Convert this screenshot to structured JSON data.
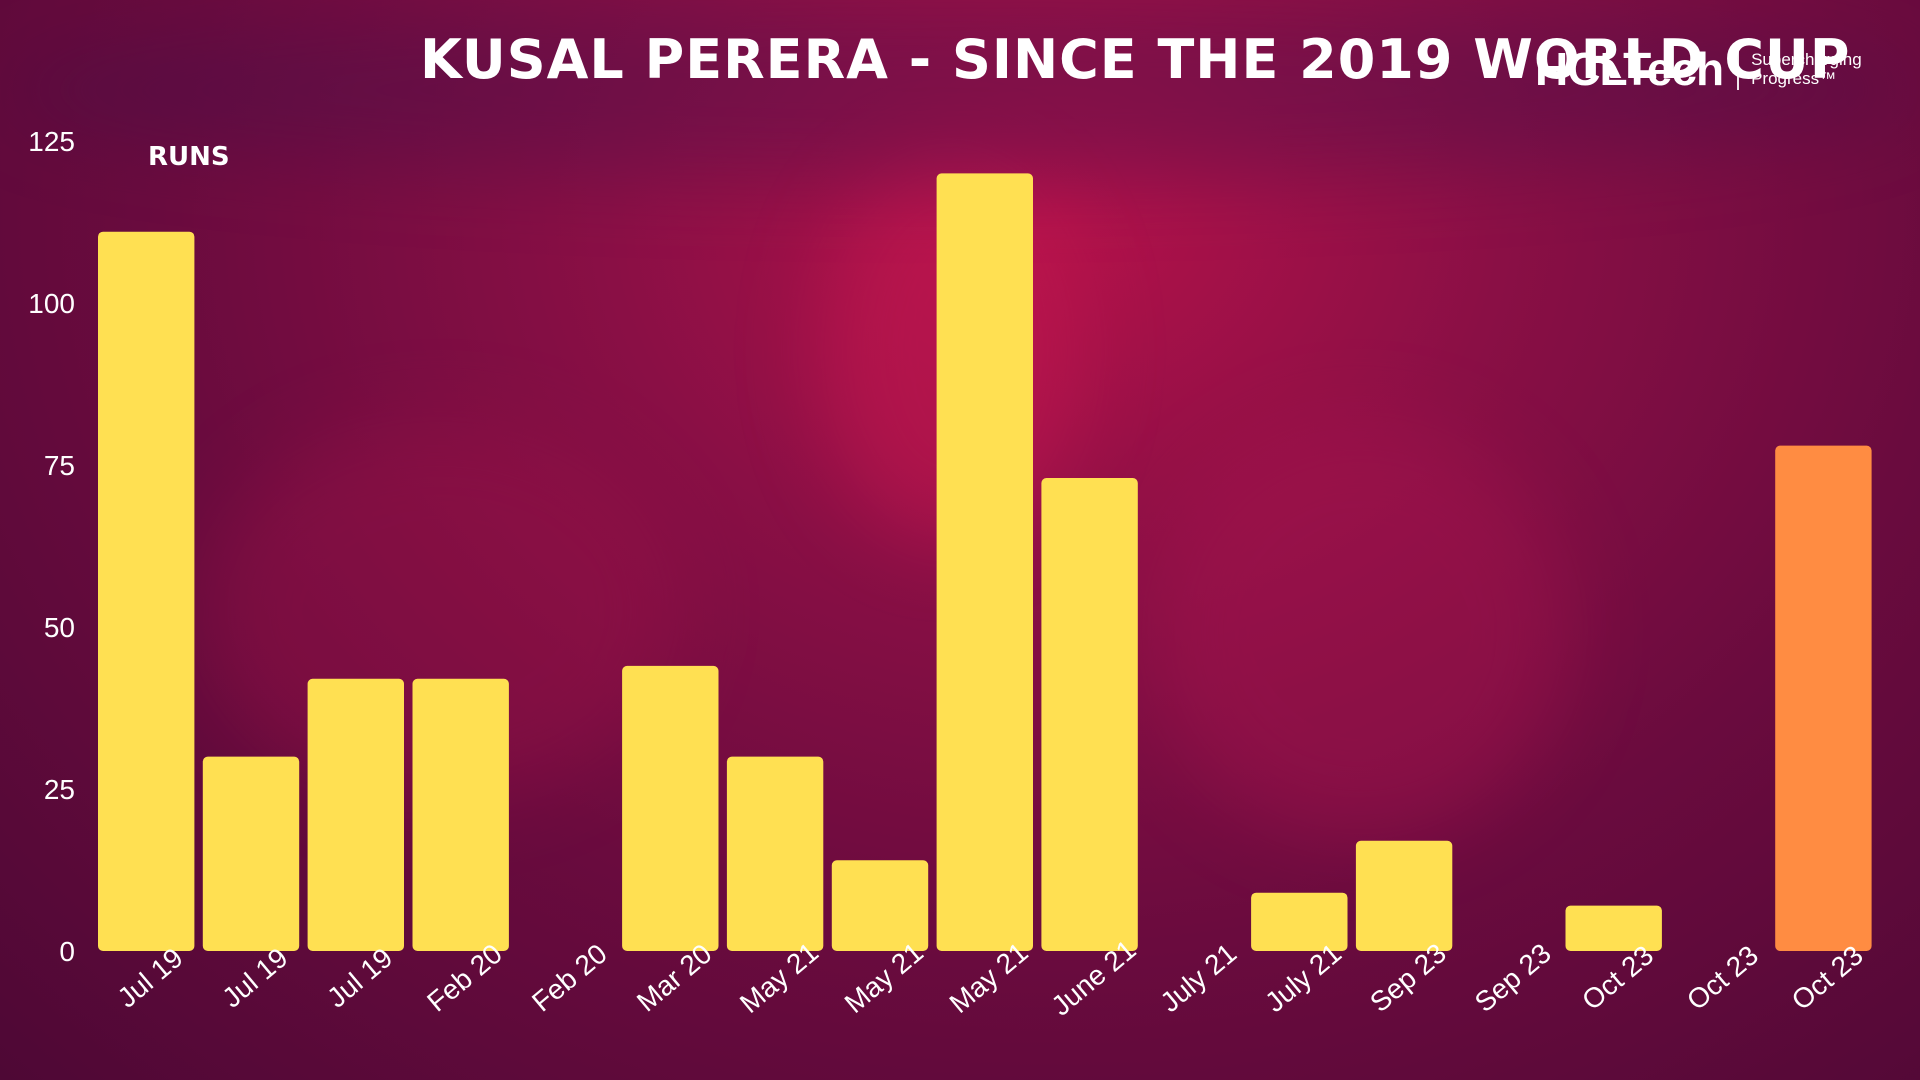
{
  "title": "KUSAL PERERA - SINCE THE 2019 WORLD CUP",
  "brand": {
    "name": "HCLTech",
    "tagline": "Supercharging Progress™"
  },
  "colors": {
    "bar": "#ffe052",
    "highlight": "#ff8c42",
    "text": "#ffffff"
  },
  "chart_data": {
    "type": "bar",
    "ylabel": "RUNS",
    "ylim": [
      0,
      125
    ],
    "yticks": [
      0,
      25,
      50,
      75,
      100,
      125
    ],
    "categories": [
      "Jul 19",
      "Jul 19",
      "Jul 19",
      "Feb 20",
      "Feb 20",
      "Mar 20",
      "May 21",
      "May 21",
      "May 21",
      "June 21",
      "July 21",
      "July 21",
      "Sep 23",
      "Sep 23",
      "Oct 23",
      "Oct 23",
      "Oct 23"
    ],
    "values": [
      111,
      30,
      42,
      42,
      0,
      44,
      30,
      14,
      120,
      73,
      0,
      9,
      17,
      0,
      7,
      0,
      78
    ],
    "highlight_index": 16,
    "grid": false
  }
}
